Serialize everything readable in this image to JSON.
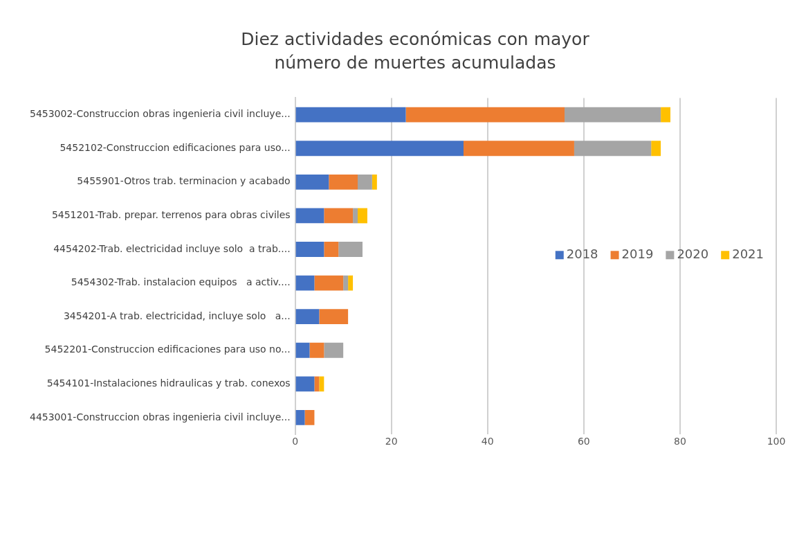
{
  "chart_data": {
    "type": "bar",
    "orientation": "horizontal",
    "stacked": true,
    "title": "Diez actividades económicas con mayor número de muertes acumuladas",
    "categories": [
      "5453002-Construccion obras ingenieria civil incluye...",
      "5452102-Construccion edificaciones para uso...",
      "5455901-Otros trab. terminacion y acabado",
      "5451201-Trab. prepar. terrenos para obras civiles",
      "4454202-Trab. electricidad incluye solo  a trab....",
      "5454302-Trab. instalacion equipos   a activ....",
      "3454201-A trab. electricidad, incluye solo   a...",
      "5452201-Construccion edificaciones para uso no...",
      "5454101-Instalaciones hidraulicas y trab. conexos",
      "4453001-Construccion obras ingenieria civil incluye..."
    ],
    "series": [
      {
        "name": "2018",
        "color": "#4472c4",
        "values": [
          23,
          35,
          7,
          6,
          6,
          4,
          5,
          3,
          4,
          2
        ]
      },
      {
        "name": "2019",
        "color": "#ed7d31",
        "values": [
          33,
          23,
          6,
          6,
          3,
          6,
          6,
          3,
          1,
          2
        ]
      },
      {
        "name": "2020",
        "color": "#a5a5a5",
        "values": [
          20,
          16,
          3,
          1,
          5,
          1,
          0,
          4,
          0,
          0
        ]
      },
      {
        "name": "2021",
        "color": "#ffc000",
        "values": [
          2,
          2,
          1,
          2,
          0,
          1,
          0,
          0,
          1,
          0
        ]
      }
    ],
    "xlim": [
      0,
      100
    ],
    "xticks": [
      0,
      20,
      40,
      60,
      80,
      100
    ],
    "grid": "x",
    "legend": "right"
  }
}
